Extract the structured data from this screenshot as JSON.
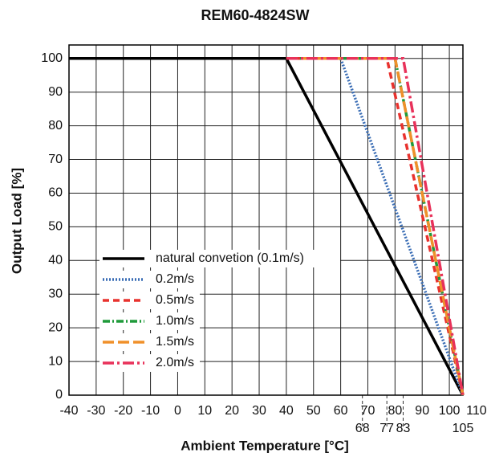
{
  "chart_data": {
    "type": "line",
    "title": "REM60-4824SW",
    "x_label": "Ambient Temperature [°C]",
    "y_label": "Output Load [%]",
    "xlim": [
      -40,
      105
    ],
    "ylim": [
      0,
      104
    ],
    "xticks": [
      -40,
      -30,
      -20,
      -10,
      0,
      10,
      20,
      30,
      40,
      50,
      60,
      70,
      80,
      90,
      100,
      110
    ],
    "yticks": [
      0,
      10,
      20,
      30,
      40,
      50,
      60,
      70,
      80,
      90,
      100
    ],
    "marker_xticks": [
      68,
      77,
      83,
      105
    ],
    "grid": true,
    "series": [
      {
        "name": "natural convetion (0.1m/s)",
        "color": "#000000",
        "dash": "solid",
        "x": [
          -40,
          40,
          105
        ],
        "values": [
          100,
          100,
          0
        ]
      },
      {
        "name": "0.2m/s",
        "color": "#3a6db5",
        "dash": "dotted",
        "x": [
          40,
          60,
          105
        ],
        "values": [
          100,
          100,
          0
        ]
      },
      {
        "name": "0.5m/s",
        "color": "#e8322e",
        "dash": "dashed",
        "x": [
          40,
          77,
          105
        ],
        "values": [
          100,
          100,
          0
        ]
      },
      {
        "name": "1.0m/s",
        "color": "#1f9a3a",
        "dash": "dashdot",
        "x": [
          40,
          80,
          105
        ],
        "values": [
          100,
          100,
          0
        ]
      },
      {
        "name": "1.5m/s",
        "color": "#f0902a",
        "dash": "longdash",
        "x": [
          40,
          80,
          105
        ],
        "values": [
          100,
          100,
          0
        ]
      },
      {
        "name": "2.0m/s",
        "color": "#e8325a",
        "dash": "dashdotlong",
        "x": [
          40,
          83,
          105
        ],
        "values": [
          100,
          100,
          0
        ]
      }
    ],
    "legend": "lower-left"
  }
}
